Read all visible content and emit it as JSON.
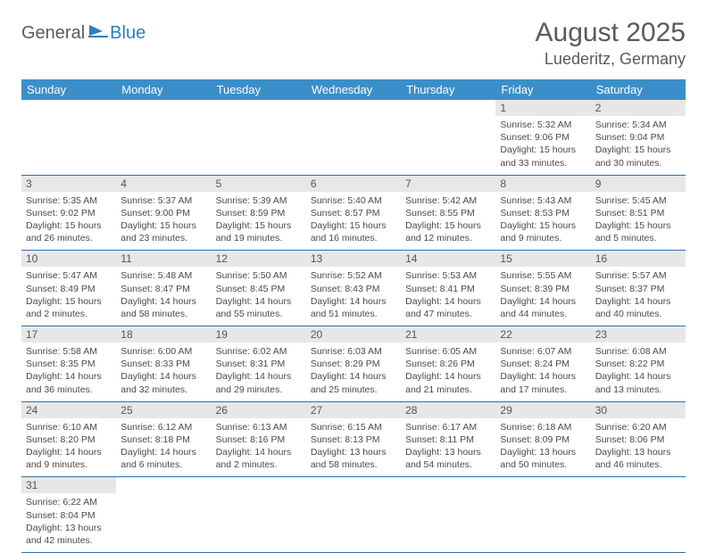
{
  "logo": {
    "general": "General",
    "blue": "Blue"
  },
  "title": "August 2025",
  "location": "Luederitz, Germany",
  "colors": {
    "header_bg": "#3b8fc9",
    "header_text": "#ffffff",
    "daynum_bg": "#e7e7e7",
    "border": "#2f6fa5",
    "text": "#4a4a4a",
    "logo_blue": "#2a7fbf"
  },
  "weekdays": [
    "Sunday",
    "Monday",
    "Tuesday",
    "Wednesday",
    "Thursday",
    "Friday",
    "Saturday"
  ],
  "weeks": [
    [
      null,
      null,
      null,
      null,
      null,
      {
        "n": "1",
        "sr": "Sunrise: 5:32 AM",
        "ss": "Sunset: 9:06 PM",
        "dl1": "Daylight: 15 hours",
        "dl2": "and 33 minutes."
      },
      {
        "n": "2",
        "sr": "Sunrise: 5:34 AM",
        "ss": "Sunset: 9:04 PM",
        "dl1": "Daylight: 15 hours",
        "dl2": "and 30 minutes."
      }
    ],
    [
      {
        "n": "3",
        "sr": "Sunrise: 5:35 AM",
        "ss": "Sunset: 9:02 PM",
        "dl1": "Daylight: 15 hours",
        "dl2": "and 26 minutes."
      },
      {
        "n": "4",
        "sr": "Sunrise: 5:37 AM",
        "ss": "Sunset: 9:00 PM",
        "dl1": "Daylight: 15 hours",
        "dl2": "and 23 minutes."
      },
      {
        "n": "5",
        "sr": "Sunrise: 5:39 AM",
        "ss": "Sunset: 8:59 PM",
        "dl1": "Daylight: 15 hours",
        "dl2": "and 19 minutes."
      },
      {
        "n": "6",
        "sr": "Sunrise: 5:40 AM",
        "ss": "Sunset: 8:57 PM",
        "dl1": "Daylight: 15 hours",
        "dl2": "and 16 minutes."
      },
      {
        "n": "7",
        "sr": "Sunrise: 5:42 AM",
        "ss": "Sunset: 8:55 PM",
        "dl1": "Daylight: 15 hours",
        "dl2": "and 12 minutes."
      },
      {
        "n": "8",
        "sr": "Sunrise: 5:43 AM",
        "ss": "Sunset: 8:53 PM",
        "dl1": "Daylight: 15 hours",
        "dl2": "and 9 minutes."
      },
      {
        "n": "9",
        "sr": "Sunrise: 5:45 AM",
        "ss": "Sunset: 8:51 PM",
        "dl1": "Daylight: 15 hours",
        "dl2": "and 5 minutes."
      }
    ],
    [
      {
        "n": "10",
        "sr": "Sunrise: 5:47 AM",
        "ss": "Sunset: 8:49 PM",
        "dl1": "Daylight: 15 hours",
        "dl2": "and 2 minutes."
      },
      {
        "n": "11",
        "sr": "Sunrise: 5:48 AM",
        "ss": "Sunset: 8:47 PM",
        "dl1": "Daylight: 14 hours",
        "dl2": "and 58 minutes."
      },
      {
        "n": "12",
        "sr": "Sunrise: 5:50 AM",
        "ss": "Sunset: 8:45 PM",
        "dl1": "Daylight: 14 hours",
        "dl2": "and 55 minutes."
      },
      {
        "n": "13",
        "sr": "Sunrise: 5:52 AM",
        "ss": "Sunset: 8:43 PM",
        "dl1": "Daylight: 14 hours",
        "dl2": "and 51 minutes."
      },
      {
        "n": "14",
        "sr": "Sunrise: 5:53 AM",
        "ss": "Sunset: 8:41 PM",
        "dl1": "Daylight: 14 hours",
        "dl2": "and 47 minutes."
      },
      {
        "n": "15",
        "sr": "Sunrise: 5:55 AM",
        "ss": "Sunset: 8:39 PM",
        "dl1": "Daylight: 14 hours",
        "dl2": "and 44 minutes."
      },
      {
        "n": "16",
        "sr": "Sunrise: 5:57 AM",
        "ss": "Sunset: 8:37 PM",
        "dl1": "Daylight: 14 hours",
        "dl2": "and 40 minutes."
      }
    ],
    [
      {
        "n": "17",
        "sr": "Sunrise: 5:58 AM",
        "ss": "Sunset: 8:35 PM",
        "dl1": "Daylight: 14 hours",
        "dl2": "and 36 minutes."
      },
      {
        "n": "18",
        "sr": "Sunrise: 6:00 AM",
        "ss": "Sunset: 8:33 PM",
        "dl1": "Daylight: 14 hours",
        "dl2": "and 32 minutes."
      },
      {
        "n": "19",
        "sr": "Sunrise: 6:02 AM",
        "ss": "Sunset: 8:31 PM",
        "dl1": "Daylight: 14 hours",
        "dl2": "and 29 minutes."
      },
      {
        "n": "20",
        "sr": "Sunrise: 6:03 AM",
        "ss": "Sunset: 8:29 PM",
        "dl1": "Daylight: 14 hours",
        "dl2": "and 25 minutes."
      },
      {
        "n": "21",
        "sr": "Sunrise: 6:05 AM",
        "ss": "Sunset: 8:26 PM",
        "dl1": "Daylight: 14 hours",
        "dl2": "and 21 minutes."
      },
      {
        "n": "22",
        "sr": "Sunrise: 6:07 AM",
        "ss": "Sunset: 8:24 PM",
        "dl1": "Daylight: 14 hours",
        "dl2": "and 17 minutes."
      },
      {
        "n": "23",
        "sr": "Sunrise: 6:08 AM",
        "ss": "Sunset: 8:22 PM",
        "dl1": "Daylight: 14 hours",
        "dl2": "and 13 minutes."
      }
    ],
    [
      {
        "n": "24",
        "sr": "Sunrise: 6:10 AM",
        "ss": "Sunset: 8:20 PM",
        "dl1": "Daylight: 14 hours",
        "dl2": "and 9 minutes."
      },
      {
        "n": "25",
        "sr": "Sunrise: 6:12 AM",
        "ss": "Sunset: 8:18 PM",
        "dl1": "Daylight: 14 hours",
        "dl2": "and 6 minutes."
      },
      {
        "n": "26",
        "sr": "Sunrise: 6:13 AM",
        "ss": "Sunset: 8:16 PM",
        "dl1": "Daylight: 14 hours",
        "dl2": "and 2 minutes."
      },
      {
        "n": "27",
        "sr": "Sunrise: 6:15 AM",
        "ss": "Sunset: 8:13 PM",
        "dl1": "Daylight: 13 hours",
        "dl2": "and 58 minutes."
      },
      {
        "n": "28",
        "sr": "Sunrise: 6:17 AM",
        "ss": "Sunset: 8:11 PM",
        "dl1": "Daylight: 13 hours",
        "dl2": "and 54 minutes."
      },
      {
        "n": "29",
        "sr": "Sunrise: 6:18 AM",
        "ss": "Sunset: 8:09 PM",
        "dl1": "Daylight: 13 hours",
        "dl2": "and 50 minutes."
      },
      {
        "n": "30",
        "sr": "Sunrise: 6:20 AM",
        "ss": "Sunset: 8:06 PM",
        "dl1": "Daylight: 13 hours",
        "dl2": "and 46 minutes."
      }
    ],
    [
      {
        "n": "31",
        "sr": "Sunrise: 6:22 AM",
        "ss": "Sunset: 8:04 PM",
        "dl1": "Daylight: 13 hours",
        "dl2": "and 42 minutes."
      },
      null,
      null,
      null,
      null,
      null,
      null
    ]
  ]
}
